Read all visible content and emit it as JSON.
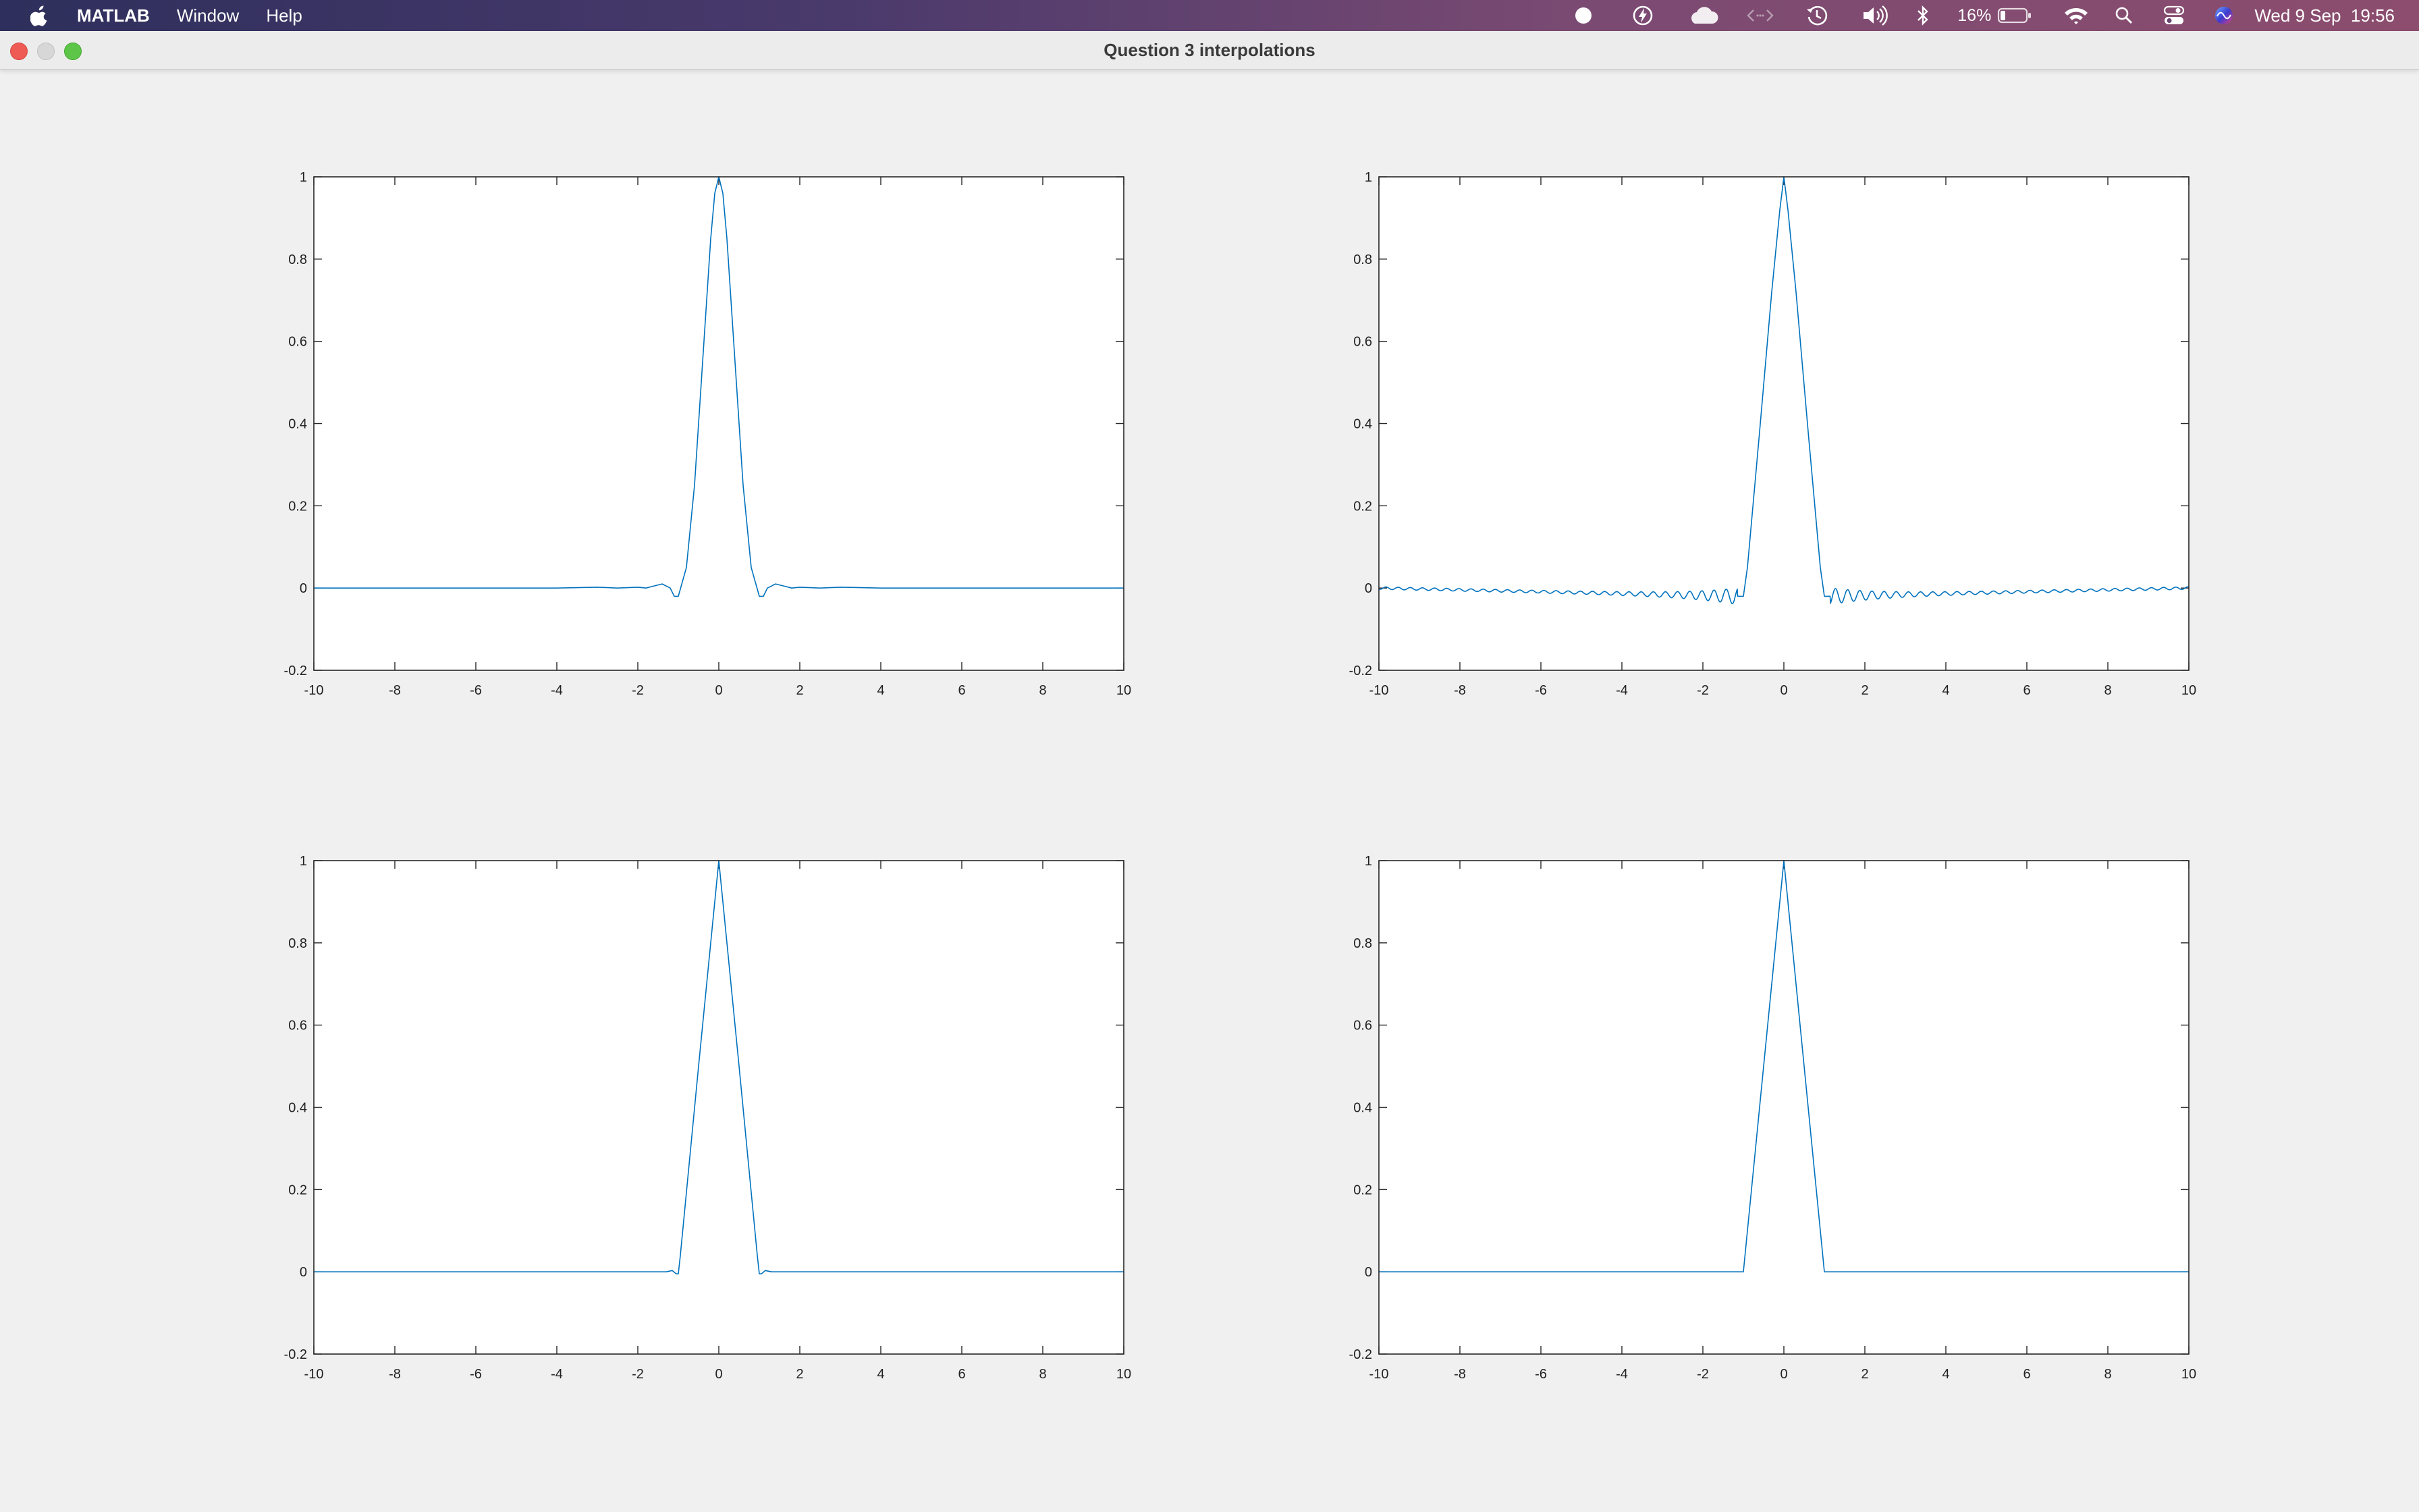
{
  "menubar": {
    "app_name": "MATLAB",
    "menus": [
      "Window",
      "Help"
    ],
    "battery_percent": "16%",
    "clock": "Wed 9 Sep  19:56",
    "icons": [
      "apple-logo-icon",
      "record-icon",
      "lightning-icon",
      "cloud-icon",
      "code-icon",
      "time-machine-icon",
      "volume-icon",
      "bluetooth-icon",
      "battery-icon",
      "wifi-icon",
      "spotlight-search-icon",
      "control-center-icon",
      "siri-icon"
    ]
  },
  "window": {
    "title": "Question 3 interpolations"
  },
  "colors": {
    "line": "#0072bd",
    "axes_bg": "#ffffff",
    "figure_bg": "#f0f0f0",
    "axis": "#262626"
  },
  "chart_data": [
    {
      "type": "line",
      "subplot": "top-left",
      "xlim": [
        -10,
        10
      ],
      "ylim": [
        -0.2,
        1
      ],
      "xticks": [
        "-10",
        "-8",
        "-6",
        "-4",
        "-2",
        "0",
        "2",
        "4",
        "6",
        "8",
        "10"
      ],
      "yticks": [
        "-0.2",
        "0",
        "0.2",
        "0.4",
        "0.6",
        "0.8",
        "1"
      ],
      "series": [
        {
          "x": [
            -10,
            -4,
            -3,
            -2.5,
            -2,
            -1.8,
            -1.6,
            -1.4,
            -1.2,
            -1.1,
            -1,
            -0.8,
            -0.6,
            -0.4,
            -0.2,
            -0.1,
            0,
            0.1,
            0.2,
            0.4,
            0.6,
            0.8,
            1,
            1.1,
            1.2,
            1.4,
            1.6,
            1.8,
            2,
            2.5,
            3,
            4,
            10
          ],
          "y": [
            0,
            0,
            0.002,
            0,
            0.002,
            0,
            0.005,
            0.01,
            0,
            -0.02,
            -0.02,
            0.05,
            0.25,
            0.55,
            0.85,
            0.96,
            1,
            0.96,
            0.85,
            0.55,
            0.25,
            0.05,
            -0.02,
            -0.02,
            0,
            0.01,
            0.005,
            0,
            0.002,
            0,
            0.002,
            0,
            0
          ]
        }
      ]
    },
    {
      "type": "line",
      "subplot": "top-right",
      "xlim": [
        -10,
        10
      ],
      "ylim": [
        -0.2,
        1
      ],
      "xticks": [
        "-10",
        "-8",
        "-6",
        "-4",
        "-2",
        "0",
        "2",
        "4",
        "6",
        "8",
        "10"
      ],
      "yticks": [
        "-0.2",
        "0",
        "0.2",
        "0.4",
        "0.6",
        "0.8",
        "1"
      ],
      "ripple": {
        "amplitude_near": 0.02,
        "amplitude_far": 0.003,
        "period": 0.3
      },
      "series": [
        {
          "x": [
            -10,
            -1.1,
            -1,
            -0.9,
            -0.6,
            -0.3,
            -0.1,
            0,
            0.1,
            0.3,
            0.6,
            0.9,
            1,
            1.1,
            10
          ],
          "y": [
            0,
            -0.02,
            -0.02,
            0.05,
            0.38,
            0.72,
            0.92,
            1,
            0.92,
            0.72,
            0.38,
            0.05,
            -0.02,
            -0.02,
            0
          ]
        }
      ]
    },
    {
      "type": "line",
      "subplot": "bottom-left",
      "xlim": [
        -10,
        10
      ],
      "ylim": [
        -0.2,
        1
      ],
      "xticks": [
        "-10",
        "-8",
        "-6",
        "-4",
        "-2",
        "0",
        "2",
        "4",
        "6",
        "8",
        "10"
      ],
      "yticks": [
        "-0.2",
        "0",
        "0.2",
        "0.4",
        "0.6",
        "0.8",
        "1"
      ],
      "series": [
        {
          "x": [
            -10,
            -1.3,
            -1.15,
            -1.05,
            -1,
            -0.95,
            -0.5,
            0,
            0.5,
            0.95,
            1,
            1.05,
            1.15,
            1.3,
            10
          ],
          "y": [
            0,
            0,
            0.003,
            -0.005,
            -0.005,
            0.04,
            0.5,
            1,
            0.5,
            0.04,
            -0.005,
            -0.005,
            0.003,
            0,
            0
          ]
        }
      ]
    },
    {
      "type": "line",
      "subplot": "bottom-right",
      "xlim": [
        -10,
        10
      ],
      "ylim": [
        -0.2,
        1
      ],
      "xticks": [
        "-10",
        "-8",
        "-6",
        "-4",
        "-2",
        "0",
        "2",
        "4",
        "6",
        "8",
        "10"
      ],
      "yticks": [
        "-0.2",
        "0",
        "0.2",
        "0.4",
        "0.6",
        "0.8",
        "1"
      ],
      "series": [
        {
          "x": [
            -10,
            -1,
            0,
            1,
            10
          ],
          "y": [
            0,
            0,
            1,
            0,
            0
          ]
        }
      ]
    }
  ]
}
